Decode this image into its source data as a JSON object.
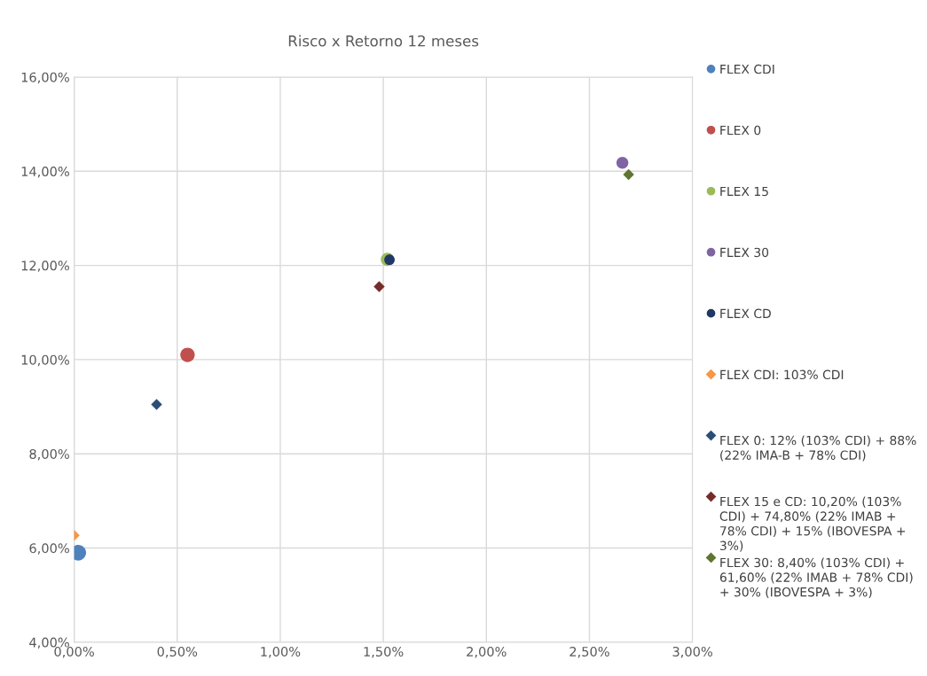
{
  "chart_data": {
    "type": "scatter",
    "title": "Risco x Retorno 12 meses",
    "xlim": [
      0,
      3
    ],
    "ylim": [
      4,
      16
    ],
    "xticks": [
      {
        "value": 0,
        "label": "0,00%"
      },
      {
        "value": 0.5,
        "label": "0,50%"
      },
      {
        "value": 1,
        "label": "1,00%"
      },
      {
        "value": 1.5,
        "label": "1,50%"
      },
      {
        "value": 2,
        "label": "2,00%"
      },
      {
        "value": 2.5,
        "label": "2,50%"
      },
      {
        "value": 3,
        "label": "3,00%"
      }
    ],
    "yticks": [
      {
        "value": 4,
        "label": "4,00%"
      },
      {
        "value": 6,
        "label": "6,00%"
      },
      {
        "value": 8,
        "label": "8,00%"
      },
      {
        "value": 10,
        "label": "10,00%"
      },
      {
        "value": 12,
        "label": "12,00%"
      },
      {
        "value": 14,
        "label": "14,00%"
      },
      {
        "value": 16,
        "label": "16,00%"
      }
    ],
    "grid": true,
    "legend": "right",
    "series": [
      {
        "name": "FLEX CDI",
        "color": "#4f81bd",
        "marker": "circle",
        "x": [
          0.02
        ],
        "values": [
          5.9
        ]
      },
      {
        "name": "FLEX 0",
        "color": "#c0504d",
        "marker": "circle",
        "x": [
          0.55
        ],
        "values": [
          10.1
        ]
      },
      {
        "name": "FLEX 15",
        "color": "#9bbb59",
        "marker": "circle",
        "x": [
          1.52
        ],
        "values": [
          12.13
        ]
      },
      {
        "name": "FLEX 30",
        "color": "#8064a2",
        "marker": "circle",
        "x": [
          2.66
        ],
        "values": [
          14.18
        ]
      },
      {
        "name": "FLEX CD",
        "color": "#1f3864",
        "marker": "circle",
        "x": [
          1.53
        ],
        "values": [
          12.12
        ]
      },
      {
        "name": "FLEX CDI: 103% CDI",
        "color": "#f79646",
        "marker": "diamond",
        "x": [
          0.0
        ],
        "values": [
          6.27
        ]
      },
      {
        "name": "FLEX 0: 12% (103% CDI) + 88% (22% IMA-B + 78% CDI)",
        "color": "#2c4d75",
        "marker": "diamond",
        "x": [
          0.4
        ],
        "values": [
          9.05
        ]
      },
      {
        "name": "FLEX 15 e CD: 10,20% (103% CDI) + 74,80% (22% IMAB + 78% CDI) + 15% (IBOVESPA + 3%)",
        "color": "#772c2a",
        "marker": "diamond",
        "x": [
          1.48
        ],
        "values": [
          11.55
        ]
      },
      {
        "name": "FLEX 30: 8,40% (103% CDI) + 61,60% (22% IMAB + 78% CDI) + 30% (IBOVESPA + 3%)",
        "color": "#5f7530",
        "marker": "diamond",
        "x": [
          2.69
        ],
        "values": [
          13.93
        ]
      }
    ]
  }
}
